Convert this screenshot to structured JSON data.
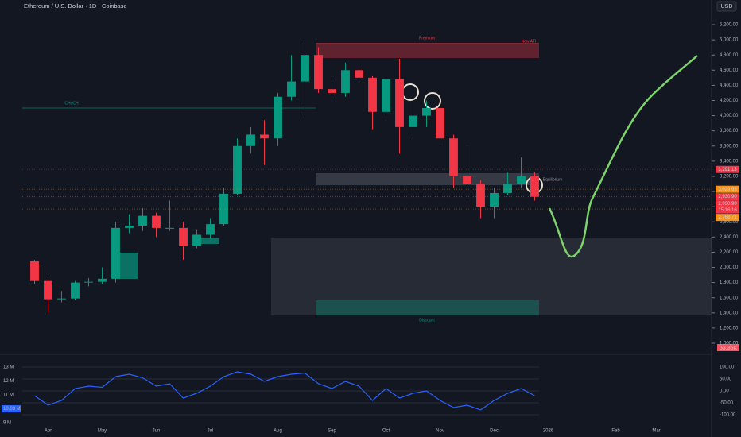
{
  "chart_data": {
    "type": "candlestick",
    "title": "Ethereum / U.S. Dollar · 1D · Coinbase",
    "currency": "USD",
    "categories": [
      null,
      "Apr",
      null,
      null,
      null,
      "May",
      null,
      null,
      null,
      "Jun",
      null,
      null,
      null,
      "Jul",
      null,
      null,
      null,
      null,
      "Aug",
      null,
      null,
      null,
      "Sep",
      null,
      null,
      null,
      "Oct",
      null,
      null,
      null,
      "Nov",
      null,
      null,
      null,
      "Dec",
      null,
      null,
      null,
      "2026",
      null,
      null,
      null,
      null,
      "Feb",
      null,
      null,
      "Mar",
      null
    ],
    "open": [
      2080,
      1820,
      1580,
      1590,
      1800,
      1810,
      1850,
      2520,
      2550,
      2680,
      2520,
      2520,
      2280,
      2430,
      2570,
      2970,
      3600,
      3750,
      3700,
      4250,
      4450,
      4800,
      4350,
      4300,
      4600,
      4500,
      4050,
      4480,
      3850,
      4000,
      4100,
      3700,
      3200,
      3100,
      2800,
      2980,
      3100,
      3200,
      null,
      null,
      null,
      null,
      null,
      null,
      null,
      null,
      null,
      null
    ],
    "high": [
      2100,
      1850,
      1690,
      1820,
      1860,
      2000,
      2600,
      2700,
      2780,
      2720,
      2880,
      2600,
      2500,
      2650,
      3050,
      3700,
      3850,
      3940,
      4300,
      4800,
      4960,
      4900,
      4500,
      4700,
      4650,
      4520,
      4500,
      4750,
      4250,
      4200,
      4200,
      3750,
      3600,
      3150,
      3050,
      3250,
      3450,
      3250,
      null,
      null,
      null,
      null,
      null,
      null,
      null,
      null,
      null,
      null
    ],
    "low": [
      1780,
      1400,
      1540,
      1570,
      1750,
      1780,
      1800,
      2450,
      2480,
      2400,
      2480,
      2100,
      2250,
      2380,
      2550,
      2950,
      3500,
      3350,
      3600,
      4200,
      4000,
      4300,
      4200,
      4250,
      4450,
      3820,
      4000,
      3500,
      3700,
      3850,
      3600,
      3050,
      2900,
      2650,
      2650,
      2950,
      3050,
      2880,
      null,
      null,
      null,
      null,
      null,
      null,
      null,
      null,
      null,
      null
    ],
    "close": [
      1820,
      1580,
      1590,
      1800,
      1810,
      1850,
      2520,
      2550,
      2680,
      2520,
      2520,
      2280,
      2430,
      2570,
      2970,
      3600,
      3750,
      3700,
      4250,
      4450,
      4800,
      4350,
      4300,
      4600,
      4500,
      4050,
      4480,
      3850,
      4000,
      4100,
      3700,
      3200,
      3100,
      2800,
      2980,
      3100,
      3200,
      2930,
      null,
      null,
      null,
      null,
      null,
      null,
      null,
      null,
      null,
      null
    ],
    "up_color": "#089981",
    "down_color": "#f23645",
    "ylim": [
      1000,
      5200
    ],
    "yticks": [
      {
        "value": 1000,
        "label": "1,000.00"
      },
      {
        "value": 1200,
        "label": "1,200.00"
      },
      {
        "value": 1400,
        "label": "1,400.00"
      },
      {
        "value": 1600,
        "label": "1,600.00"
      },
      {
        "value": 1800,
        "label": "1,800.00"
      },
      {
        "value": 2000,
        "label": "2,000.00"
      },
      {
        "value": 2200,
        "label": "2,200.00"
      },
      {
        "value": 2400,
        "label": "2,400.00"
      },
      {
        "value": 2600,
        "label": "2,600.00"
      },
      {
        "value": 2800,
        "label": "2,800.00"
      },
      {
        "value": 3000,
        "label": "3,000.00"
      },
      {
        "value": 3200,
        "label": "3,200.00"
      },
      {
        "value": 3400,
        "label": "3,400.00"
      },
      {
        "value": 3600,
        "label": "3,600.00"
      },
      {
        "value": 3800,
        "label": "3,800.00"
      },
      {
        "value": 4000,
        "label": "4,000.00"
      },
      {
        "value": 4200,
        "label": "4,200.00"
      },
      {
        "value": 4400,
        "label": "4,400.00"
      },
      {
        "value": 4600,
        "label": "4,600.00"
      },
      {
        "value": 4800,
        "label": "4,800.00"
      },
      {
        "value": 5000,
        "label": "5,000.00"
      },
      {
        "value": 5200,
        "label": "5,200.00"
      }
    ],
    "price_tags": [
      {
        "value": 3291.13,
        "label": "3,291.13",
        "color": "#f23645"
      },
      {
        "value": 3029.93,
        "label": "3,029.93",
        "color": "#f7931a"
      },
      {
        "value": 2930.9,
        "label": "2,930.90",
        "color": "#f23645"
      },
      {
        "value": 2930.9,
        "label": "2,930.90",
        "color": "#f23645"
      },
      {
        "value": 2768.71,
        "label": "2,768.71",
        "color": "#f7931a"
      }
    ],
    "countdown": "15:16:16",
    "volume_label": "53.36K",
    "annotations": [
      "Premium",
      "New ATH",
      "CHoCH",
      "Equilibrium",
      "Discount"
    ],
    "oscillator": {
      "ylim": [
        -120,
        120
      ],
      "yticks": [
        {
          "value": 100,
          "label": "100.00"
        },
        {
          "value": 50,
          "label": "50.00"
        },
        {
          "value": 0,
          "label": "0.00"
        },
        {
          "value": -50,
          "label": "-50.00"
        },
        {
          "value": -100,
          "label": "-100.00"
        }
      ],
      "left_ticks": [
        "13 M",
        "12 M",
        "11 M",
        "10.03 M",
        "9 M"
      ],
      "color": "#2962ff",
      "values": [
        -20,
        -60,
        -40,
        10,
        20,
        15,
        60,
        70,
        55,
        20,
        30,
        -30,
        -10,
        20,
        60,
        80,
        70,
        40,
        60,
        70,
        75,
        30,
        10,
        40,
        20,
        -40,
        10,
        -30,
        -10,
        0,
        -40,
        -70,
        -60,
        -80,
        -40,
        -10,
        10,
        -20,
        null,
        null,
        null,
        null,
        null,
        null,
        null,
        null,
        null,
        null
      ]
    }
  }
}
